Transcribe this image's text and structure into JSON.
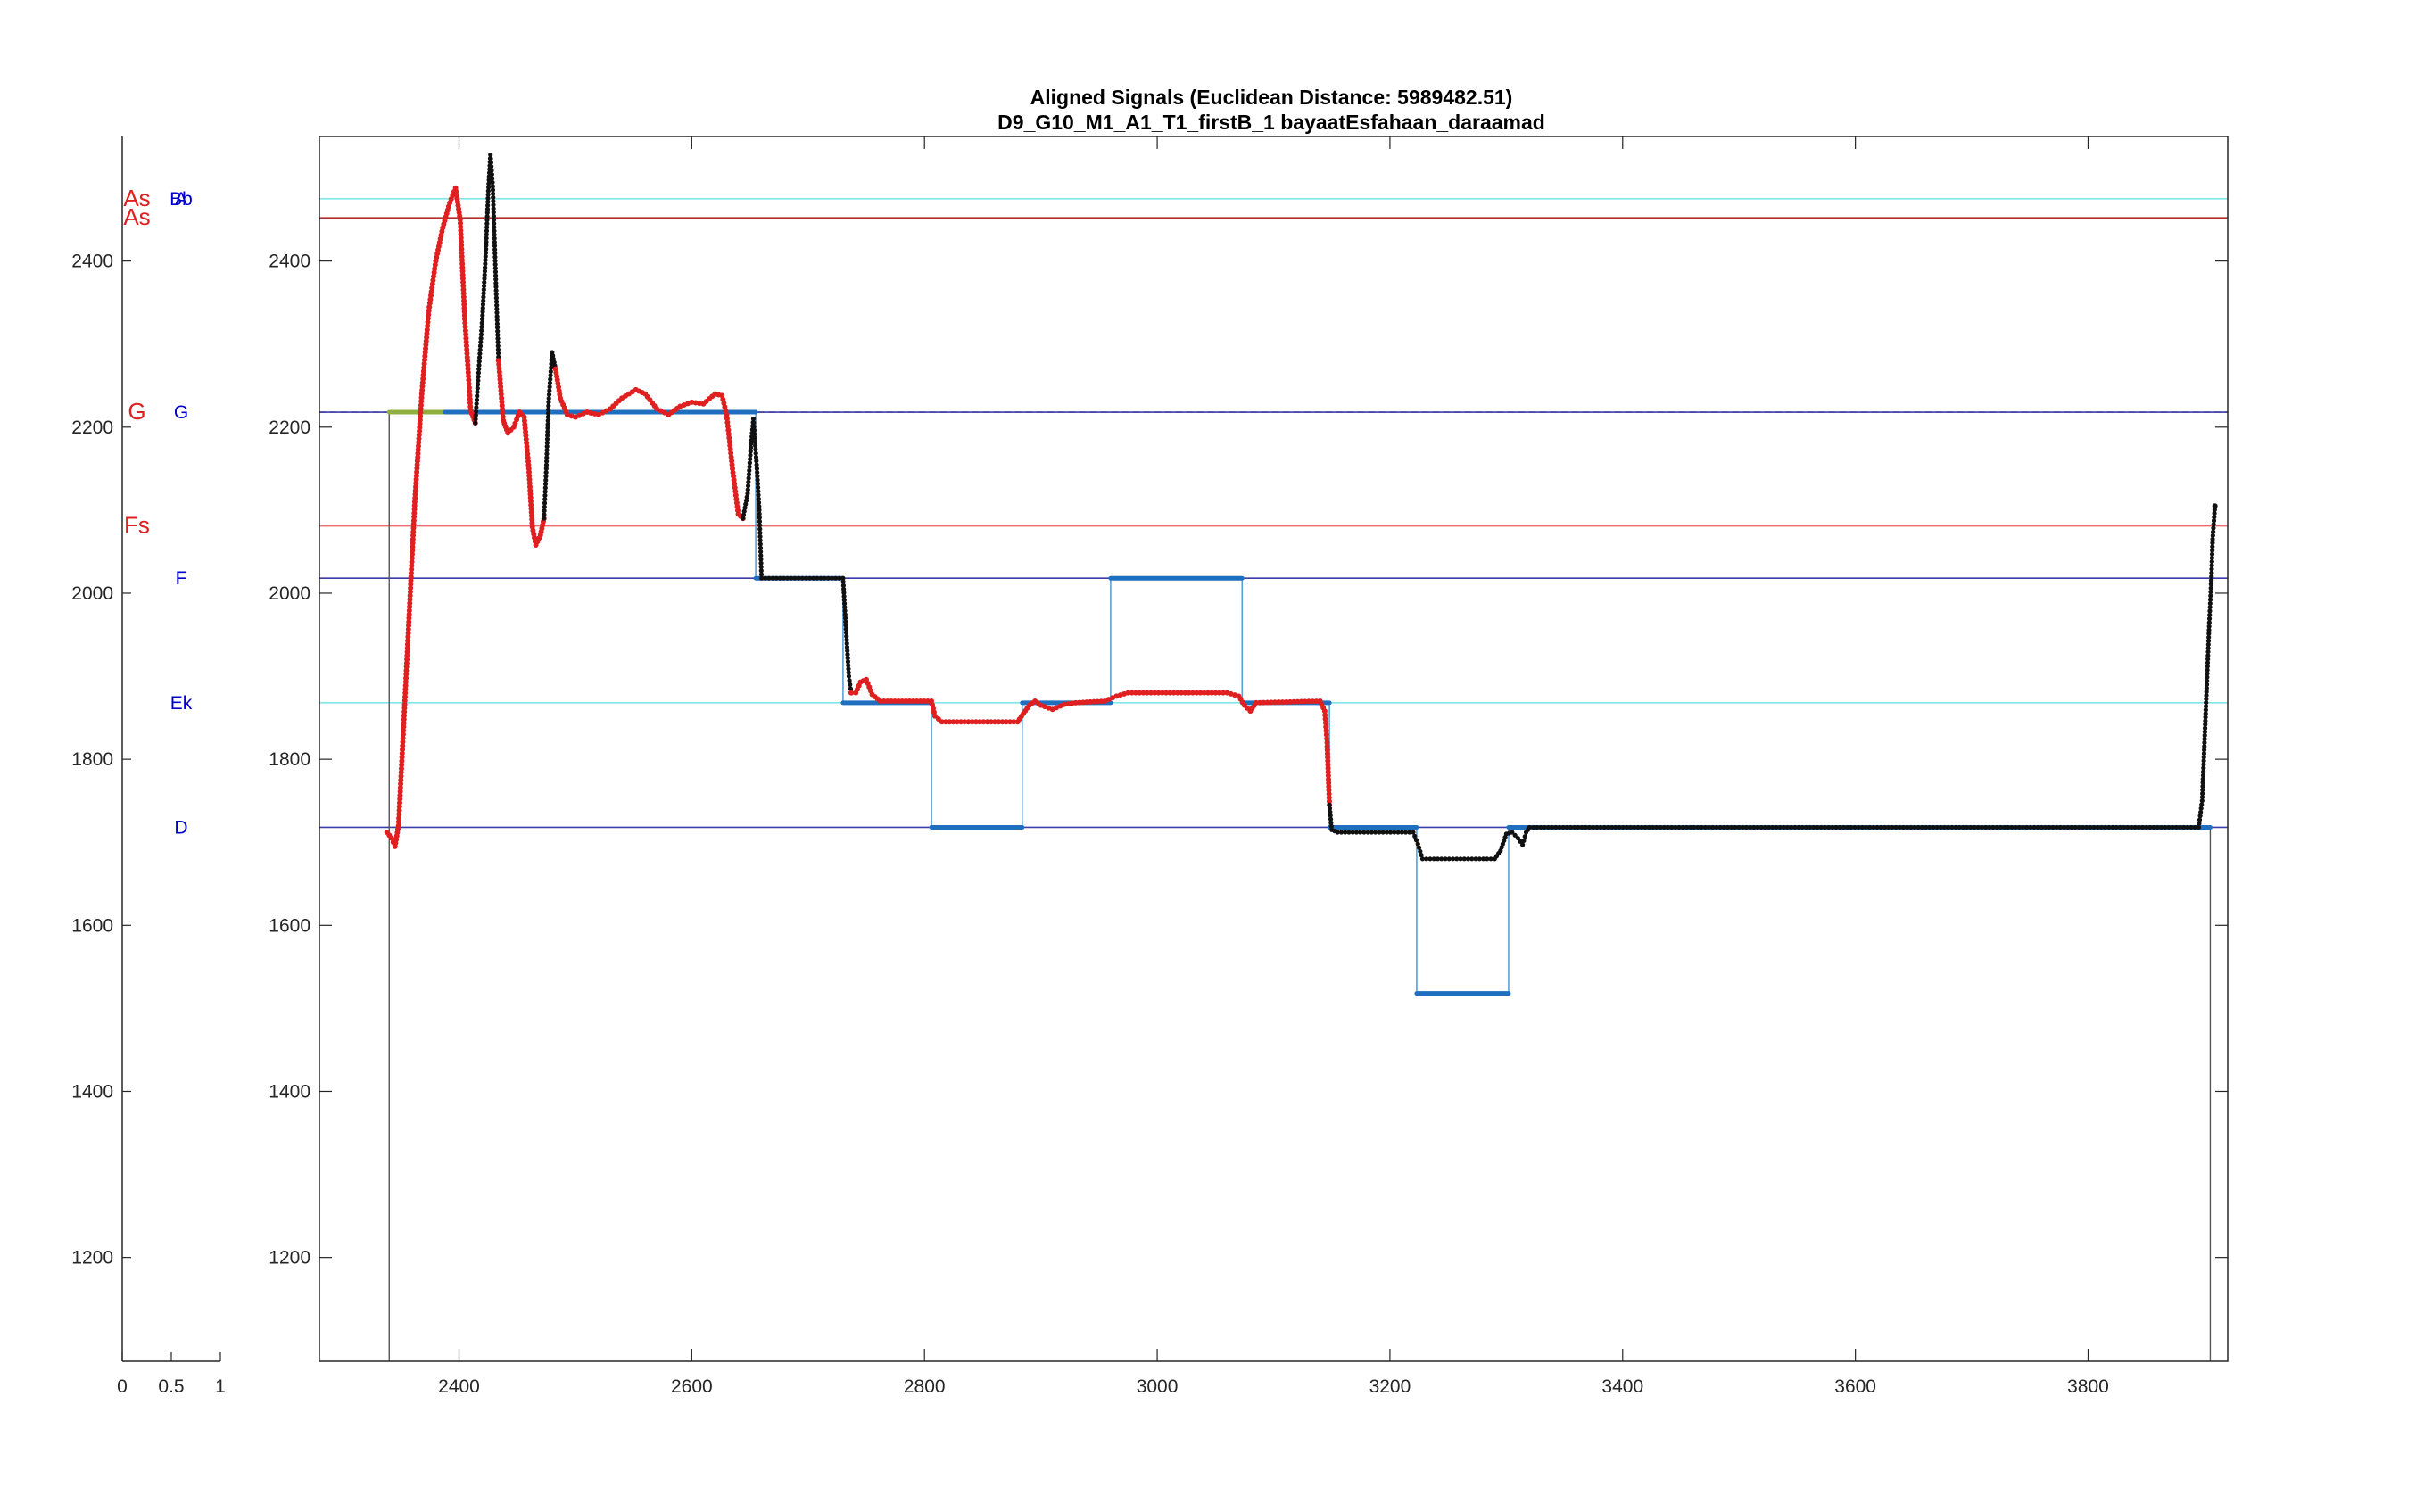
{
  "chart_data": {
    "type": "line",
    "title": "Aligned Signals  (Euclidean Distance: 5989482.51)",
    "subtitle": "D9_G10_M1_A1_T1_firstB_1 bayaatEsfahaan_daraamad",
    "xlabel": "",
    "ylabel": "",
    "grid": false,
    "legend": "none",
    "main_axes": {
      "xlim": [
        2280,
        3920
      ],
      "ylim": [
        1075,
        2550
      ],
      "x_ticks": [
        2400,
        2600,
        2800,
        3000,
        3200,
        3400,
        3600,
        3800
      ],
      "y_ticks": [
        1200,
        1400,
        1600,
        1800,
        2000,
        2200,
        2400
      ]
    },
    "side_axes": {
      "xlim": [
        0,
        1
      ],
      "ylim": [
        1075,
        2550
      ],
      "x_ticks": [
        "0",
        "0.5",
        "1"
      ],
      "y_ticks": [
        1200,
        1400,
        1600,
        1800,
        2000,
        2200,
        2400
      ]
    },
    "reference_lines": [
      {
        "y": 2475,
        "color": "#7fe6e6",
        "label": "Bb",
        "label_color": "#0000cc"
      },
      {
        "y": 2475,
        "color": "#7fe6e6",
        "label": "A",
        "label_color": "#0000cc"
      },
      {
        "y": 2475,
        "color": "#7fe6e6",
        "label": "As",
        "label_color": "#e02020"
      },
      {
        "y": 2452,
        "color": "#b03030",
        "label": "As",
        "label_color": "#e02020"
      },
      {
        "y": 2218,
        "color": "#777777",
        "label": "G",
        "label_color": "#e02020",
        "dashed": true
      },
      {
        "y": 2218,
        "color": "#3c3caa",
        "label": "G",
        "label_color": "#0000cc"
      },
      {
        "y": 2081,
        "color": "#f06a6a",
        "label": "Fs",
        "label_color": "#e02020"
      },
      {
        "y": 2018,
        "color": "#3c3caa",
        "label": "F",
        "label_color": "#0000cc"
      },
      {
        "y": 1868,
        "color": "#7fe6e6",
        "label": "Ek",
        "label_color": "#0000cc"
      },
      {
        "y": 1718,
        "color": "#3c3caa",
        "label": "D",
        "label_color": "#0000cc"
      }
    ],
    "series": [
      {
        "role": "reference_steps",
        "color": "#1f6fc0",
        "line_color": "#5aa0d8",
        "segments": [
          {
            "x": [
              2340,
              2388
            ],
            "y": 2218,
            "color": "#8fb040"
          },
          {
            "x": [
              2388,
              2655
            ],
            "y": 2218
          },
          {
            "x": [
              2655,
              2730
            ],
            "y": 2018
          },
          {
            "x": [
              2730,
              2806
            ],
            "y": 1868
          },
          {
            "x": [
              2806,
              2884
            ],
            "y": 1718
          },
          {
            "x": [
              2884,
              2960
            ],
            "y": 1868
          },
          {
            "x": [
              2960,
              3073
            ],
            "y": 2018
          },
          {
            "x": [
              3073,
              3148
            ],
            "y": 1868
          },
          {
            "x": [
              3148,
              3223
            ],
            "y": 1718
          },
          {
            "x": [
              3223,
              3302
            ],
            "y": 1518
          },
          {
            "x": [
              3302,
              3905
            ],
            "y": 1718
          }
        ],
        "drops": [
          {
            "x": 2340,
            "y_from": 1075,
            "y_to": 2218
          },
          {
            "x": 3905,
            "y_from": 1718,
            "y_to": 1075
          }
        ]
      },
      {
        "role": "aligned_signal",
        "colors": {
          "matched": "#e02020",
          "unmatched": "#111111",
          "line": "#e0a060"
        },
        "segments": [
          {
            "state": "matched",
            "points": [
              [
                2338,
                1712
              ],
              [
                2342,
                1705
              ],
              [
                2345,
                1695
              ],
              [
                2348,
                1720
              ],
              [
                2352,
                1830
              ],
              [
                2357,
                1970
              ],
              [
                2362,
                2110
              ],
              [
                2368,
                2240
              ],
              [
                2374,
                2340
              ],
              [
                2380,
                2400
              ],
              [
                2386,
                2440
              ],
              [
                2392,
                2470
              ],
              [
                2397,
                2488
              ],
              [
                2401,
                2450
              ],
              [
                2405,
                2330
              ],
              [
                2410,
                2220
              ],
              [
                2414,
                2205
              ]
            ]
          },
          {
            "state": "unmatched",
            "points": [
              [
                2414,
                2205
              ],
              [
                2417,
                2270
              ],
              [
                2420,
                2330
              ],
              [
                2423,
                2410
              ],
              [
                2425,
                2480
              ],
              [
                2427,
                2528
              ],
              [
                2429,
                2490
              ],
              [
                2432,
                2360
              ],
              [
                2434,
                2280
              ]
            ]
          },
          {
            "state": "matched",
            "points": [
              [
                2434,
                2280
              ],
              [
                2438,
                2208
              ],
              [
                2442,
                2193
              ],
              [
                2447,
                2200
              ],
              [
                2452,
                2218
              ],
              [
                2456,
                2212
              ],
              [
                2460,
                2150
              ],
              [
                2463,
                2080
              ],
              [
                2466,
                2058
              ],
              [
                2470,
                2070
              ],
              [
                2473,
                2090
              ]
            ]
          },
          {
            "state": "unmatched",
            "points": [
              [
                2473,
                2090
              ],
              [
                2475,
                2150
              ],
              [
                2477,
                2230
              ],
              [
                2480,
                2290
              ],
              [
                2483,
                2270
              ]
            ]
          },
          {
            "state": "matched",
            "points": [
              [
                2483,
                2270
              ],
              [
                2487,
                2235
              ],
              [
                2493,
                2215
              ],
              [
                2500,
                2212
              ],
              [
                2510,
                2218
              ],
              [
                2520,
                2215
              ],
              [
                2530,
                2222
              ],
              [
                2540,
                2235
              ],
              [
                2552,
                2245
              ],
              [
                2560,
                2240
              ],
              [
                2570,
                2222
              ],
              [
                2580,
                2215
              ],
              [
                2590,
                2225
              ],
              [
                2600,
                2230
              ],
              [
                2610,
                2228
              ],
              [
                2620,
                2240
              ],
              [
                2626,
                2238
              ],
              [
                2630,
                2215
              ],
              [
                2635,
                2150
              ],
              [
                2640,
                2095
              ],
              [
                2644,
                2090
              ]
            ]
          },
          {
            "state": "unmatched",
            "points": [
              [
                2644,
                2090
              ],
              [
                2648,
                2120
              ],
              [
                2651,
                2180
              ],
              [
                2653,
                2210
              ],
              [
                2656,
                2150
              ],
              [
                2658,
                2100
              ],
              [
                2660,
                2018
              ],
              [
                2730,
                2018
              ],
              [
                2732,
                1970
              ],
              [
                2735,
                1900
              ],
              [
                2737,
                1880
              ]
            ]
          },
          {
            "state": "matched",
            "points": [
              [
                2737,
                1880
              ],
              [
                2741,
                1880
              ],
              [
                2745,
                1893
              ],
              [
                2750,
                1896
              ],
              [
                2755,
                1878
              ],
              [
                2762,
                1870
              ],
              [
                2806,
                1870
              ],
              [
                2809,
                1852
              ],
              [
                2815,
                1845
              ],
              [
                2880,
                1845
              ],
              [
                2885,
                1855
              ],
              [
                2890,
                1865
              ],
              [
                2895,
                1870
              ],
              [
                2900,
                1865
              ],
              [
                2910,
                1860
              ],
              [
                2920,
                1866
              ],
              [
                2930,
                1868
              ],
              [
                2955,
                1870
              ],
              [
                2965,
                1876
              ],
              [
                2975,
                1880
              ],
              [
                3060,
                1880
              ],
              [
                3070,
                1876
              ],
              [
                3075,
                1865
              ],
              [
                3080,
                1858
              ],
              [
                3085,
                1868
              ],
              [
                3140,
                1870
              ],
              [
                3144,
                1858
              ],
              [
                3146,
                1820
              ],
              [
                3148,
                1745
              ]
            ]
          },
          {
            "state": "unmatched",
            "points": [
              [
                3148,
                1745
              ],
              [
                3150,
                1715
              ],
              [
                3155,
                1712
              ],
              [
                3220,
                1712
              ],
              [
                3224,
                1698
              ],
              [
                3228,
                1680
              ],
              [
                3290,
                1680
              ],
              [
                3295,
                1690
              ],
              [
                3300,
                1710
              ],
              [
                3305,
                1712
              ],
              [
                3310,
                1705
              ],
              [
                3314,
                1697
              ],
              [
                3317,
                1712
              ],
              [
                3320,
                1718
              ],
              [
                3895,
                1718
              ],
              [
                3898,
                1750
              ],
              [
                3900,
                1820
              ],
              [
                3902,
                1890
              ],
              [
                3904,
                1960
              ],
              [
                3906,
                2020
              ],
              [
                3907,
                2065
              ],
              [
                3909,
                2105
              ]
            ]
          }
        ]
      }
    ]
  }
}
